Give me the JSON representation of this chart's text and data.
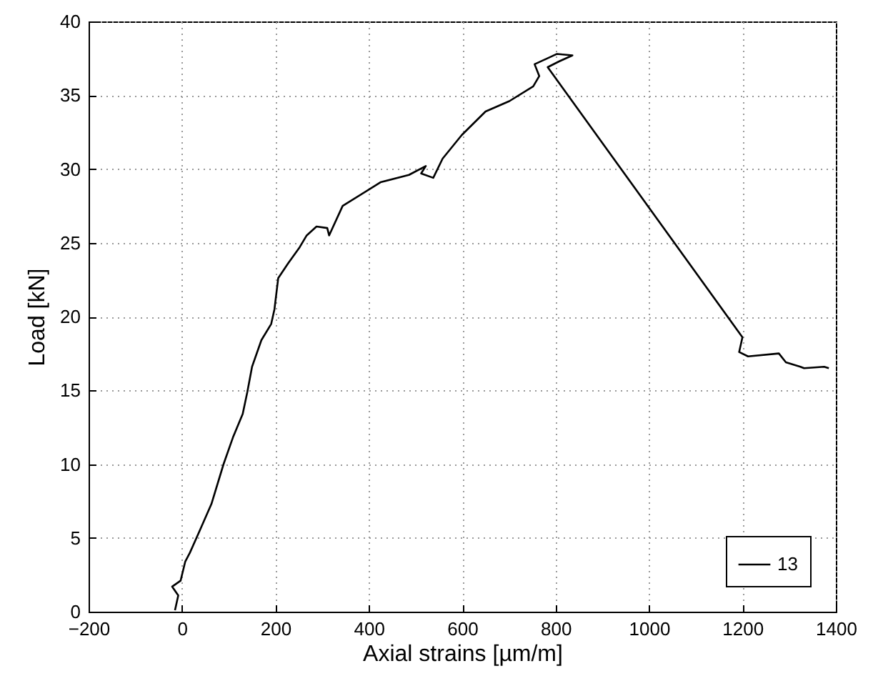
{
  "chart_data": {
    "type": "line",
    "xlabel": "Axial strains [µm/m]",
    "ylabel": "Load [kN]",
    "xlim": [
      -200,
      1400
    ],
    "xticks": [
      -200,
      0,
      200,
      400,
      600,
      800,
      1000,
      1200,
      1400
    ],
    "ylim": [
      0,
      40
    ],
    "yticks": [
      0,
      5,
      10,
      15,
      20,
      25,
      30,
      35,
      40
    ],
    "grid": true,
    "legend": "bottom right",
    "line_style": "solid",
    "marker": "none",
    "series": [
      {
        "name": "13",
        "color": "#000000",
        "x": [
          -15,
          -8,
          -21,
          -3,
          7,
          17,
          38,
          63,
          89,
          109,
          130,
          140,
          150,
          170,
          191,
          198,
          206,
          227,
          252,
          267,
          288,
          311,
          315,
          344,
          425,
          486,
          522,
          512,
          538,
          558,
          599,
          650,
          701,
          752,
          765,
          755,
          803,
          836,
          808,
          783,
          1200,
          1193,
          1212,
          1278,
          1293,
          1324,
          1332,
          1375,
          1385
        ],
        "values": [
          0.1,
          1.1,
          1.7,
          2.1,
          3.4,
          4.0,
          5.5,
          7.3,
          10.0,
          11.8,
          13.4,
          14.9,
          16.6,
          18.4,
          19.5,
          20.5,
          22.6,
          23.6,
          24.7,
          25.5,
          26.1,
          26.0,
          25.5,
          27.5,
          29.1,
          29.6,
          30.2,
          29.7,
          29.4,
          30.7,
          32.3,
          33.9,
          34.6,
          35.6,
          36.3,
          37.1,
          37.8,
          37.7,
          37.3,
          36.9,
          18.6,
          17.6,
          17.3,
          17.5,
          16.9,
          16.6,
          16.5,
          16.6,
          16.5
        ]
      }
    ]
  }
}
